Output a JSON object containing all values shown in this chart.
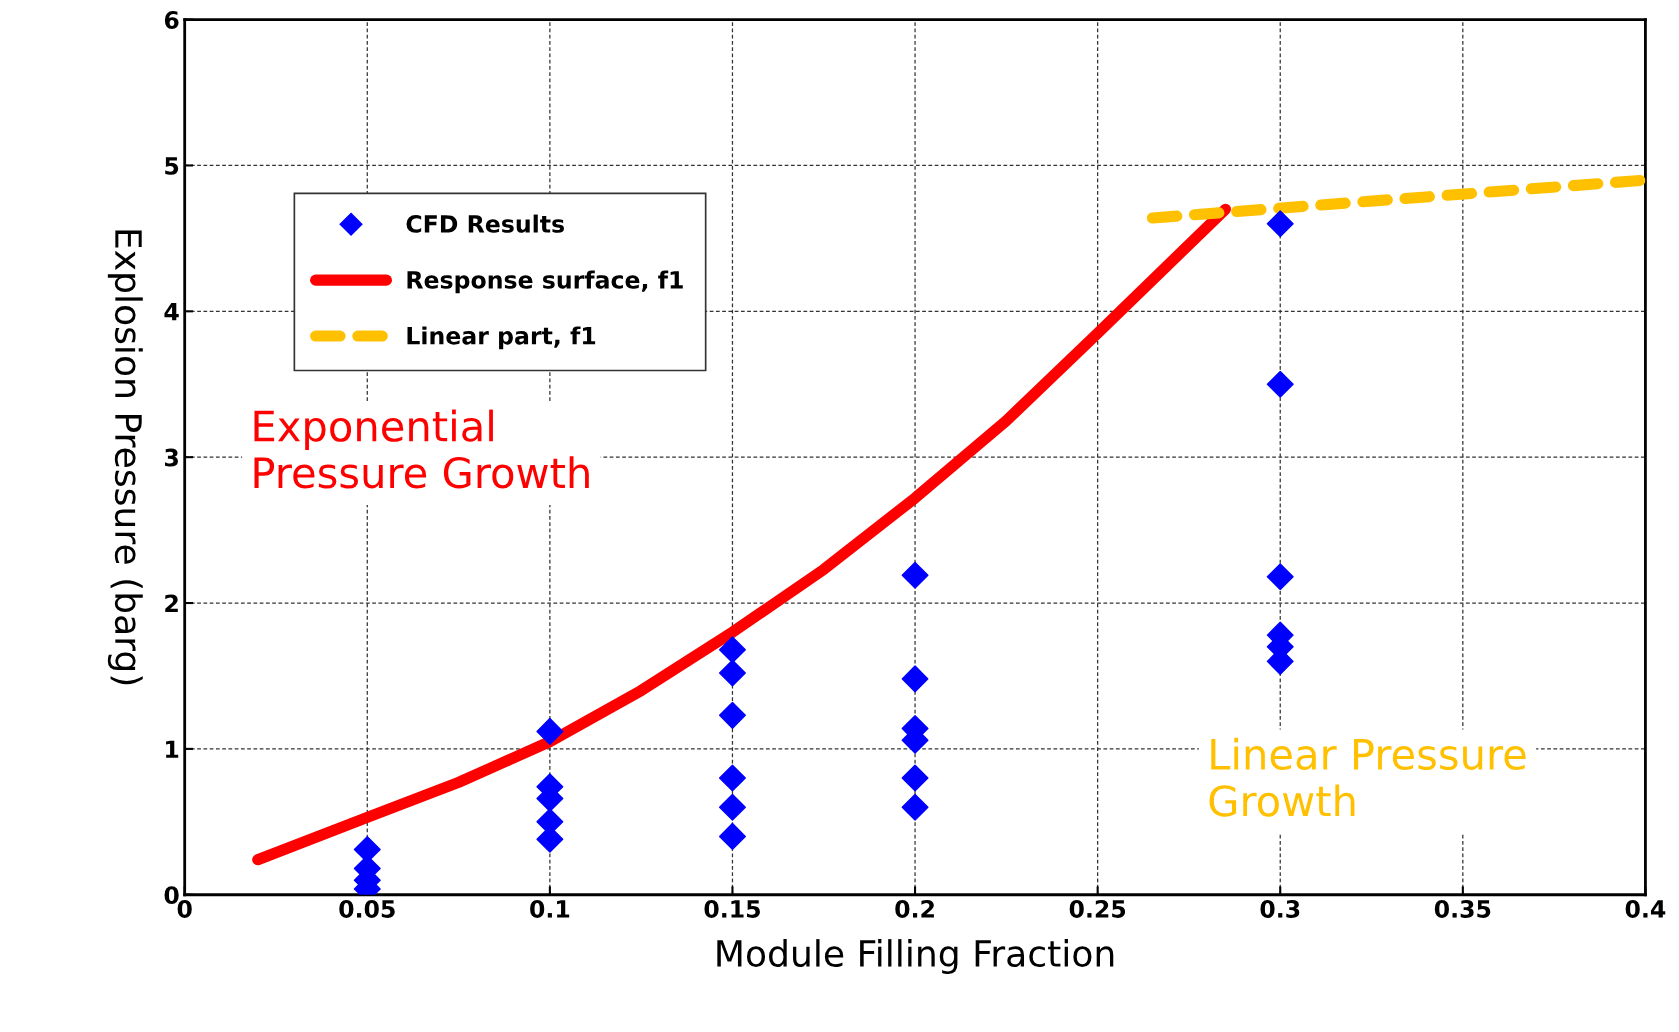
{
  "chart_data": {
    "type": "scatter",
    "xlabel": "Module Filling Fraction",
    "ylabel": "Explosion Pressure (barg)",
    "xlim": [
      0,
      0.4
    ],
    "ylim": [
      0,
      6
    ],
    "xticks": [
      0,
      0.05,
      0.1,
      0.15,
      0.2,
      0.25,
      0.3,
      0.35,
      0.4
    ],
    "yticks": [
      0,
      1,
      2,
      3,
      4,
      5,
      6
    ],
    "grid": true,
    "legend": "top left",
    "series": [
      {
        "name": "CFD Results",
        "marker": "diamond",
        "color": "#0000ff",
        "x": [
          0.05,
          0.05,
          0.05,
          0.05,
          0.1,
          0.1,
          0.1,
          0.1,
          0.1,
          0.15,
          0.15,
          0.15,
          0.15,
          0.15,
          0.15,
          0.2,
          0.2,
          0.2,
          0.2,
          0.2,
          0.2,
          0.3,
          0.3,
          0.3,
          0.3,
          0.3,
          0.3
        ],
        "values": [
          0.31,
          0.18,
          0.1,
          0.04,
          1.12,
          0.74,
          0.66,
          0.5,
          0.38,
          1.68,
          1.52,
          1.23,
          0.8,
          0.6,
          0.4,
          2.19,
          1.48,
          1.14,
          1.06,
          0.8,
          0.6,
          4.6,
          3.5,
          2.18,
          1.78,
          1.7,
          1.6
        ]
      },
      {
        "name": "Response surface, f1",
        "type": "line",
        "line_style": "solid",
        "color": "#ff0000",
        "x": [
          0.02,
          0.05,
          0.075,
          0.1,
          0.125,
          0.15,
          0.175,
          0.2,
          0.225,
          0.25,
          0.285
        ],
        "values": [
          0.24,
          0.53,
          0.77,
          1.05,
          1.4,
          1.8,
          2.23,
          2.72,
          3.25,
          3.85,
          4.7
        ]
      },
      {
        "name": "Linear part, f1",
        "type": "line",
        "line_style": "dashed",
        "color": "#ffc000",
        "x": [
          0.265,
          0.4
        ],
        "values": [
          4.64,
          4.9
        ]
      }
    ],
    "annotations": [
      "Exponential\nPressure Growth",
      "Linear Pressure\nGrowth"
    ]
  }
}
